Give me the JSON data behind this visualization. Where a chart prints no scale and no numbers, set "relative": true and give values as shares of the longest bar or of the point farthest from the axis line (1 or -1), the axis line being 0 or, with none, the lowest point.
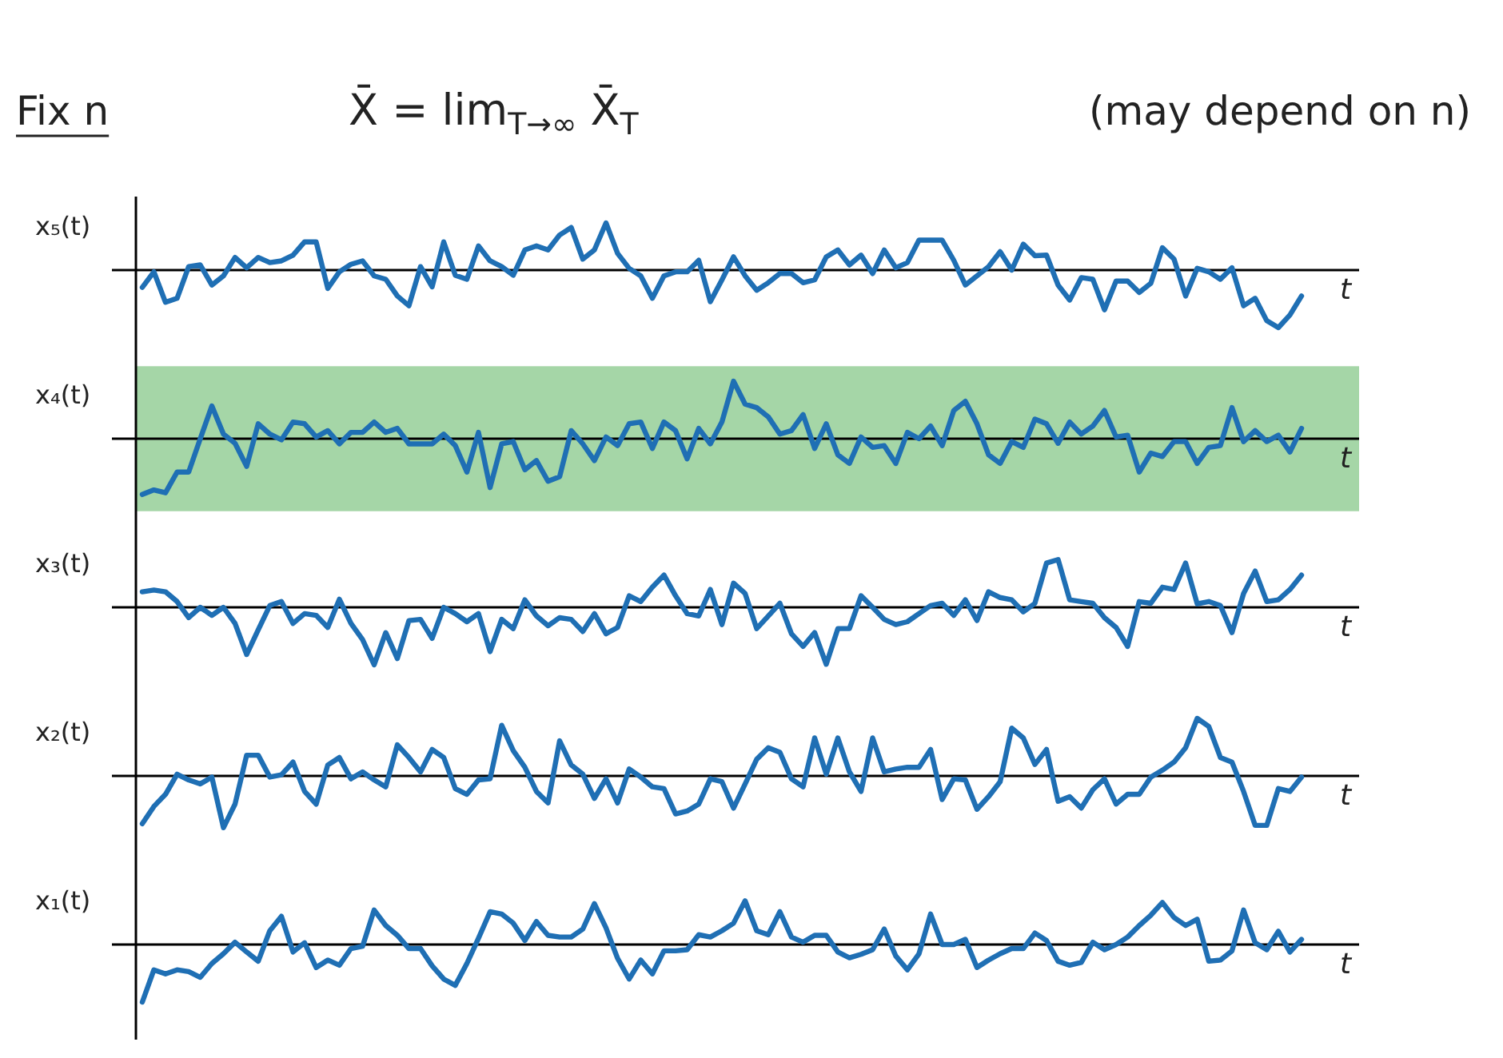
{
  "chart_data": [
    {
      "type": "line",
      "title": "X̄ = lim$_{T→∞}$ X̄$_{T}$",
      "annotations": [
        "Fix n",
        "(may depend on n)"
      ],
      "ylabel": "x₅(t)",
      "xlabel": "t",
      "relative": true,
      "color": "#1f6fb4",
      "categories": [
        null,
        null,
        null,
        null,
        null,
        null,
        null,
        null,
        null,
        null,
        null,
        null,
        null,
        null,
        null,
        null,
        null,
        null,
        null,
        null,
        null,
        null,
        null,
        null,
        null,
        null,
        null,
        null,
        null,
        null,
        null,
        null,
        null,
        null,
        null,
        null,
        null,
        null,
        null,
        null,
        null,
        null,
        null,
        null,
        null,
        null,
        null,
        null,
        null,
        null,
        null,
        null,
        null,
        null,
        null,
        null,
        null,
        null,
        null,
        null,
        null,
        null,
        null,
        null,
        null,
        null,
        null,
        null,
        null,
        null,
        null,
        null,
        null,
        null,
        null,
        null,
        null,
        null,
        null,
        null,
        null,
        null,
        null,
        null,
        null,
        null,
        null,
        null,
        null,
        null,
        null,
        null,
        null,
        null,
        null,
        null,
        null,
        null,
        null,
        null,
        null
      ],
      "values": [
        -0.3,
        -0.03,
        -0.56,
        -0.49,
        0.06,
        0.09,
        -0.26,
        -0.1,
        0.22,
        0.04,
        0.22,
        0.13,
        0.16,
        0.26,
        0.49,
        0.49,
        -0.32,
        -0.03,
        0.1,
        0.16,
        -0.1,
        -0.16,
        -0.45,
        -0.62,
        0.06,
        -0.29,
        0.49,
        -0.09,
        -0.16,
        0.42,
        0.16,
        0.06,
        -0.09,
        0.35,
        0.42,
        0.35,
        0.61,
        0.74,
        0.19,
        0.35,
        0.82,
        0.29,
        0.03,
        -0.1,
        -0.49,
        -0.1,
        -0.03,
        -0.03,
        0.17,
        -0.55,
        -0.17,
        0.23,
        -0.1,
        -0.35,
        -0.22,
        -0.06,
        -0.06,
        -0.22,
        -0.17,
        0.23,
        0.35,
        0.09,
        0.26,
        -0.06,
        0.35,
        0.04,
        0.13,
        0.52,
        0.52,
        0.52,
        0.17,
        -0.26,
        -0.1,
        0.06,
        0.32,
        0,
        0.45,
        0.25,
        0.26,
        -0.26,
        -0.52,
        -0.13,
        -0.16,
        -0.69,
        -0.19,
        -0.19,
        -0.39,
        -0.23,
        0.39,
        0.19,
        -0.45,
        0.03,
        -0.03,
        -0.16,
        0.04,
        -0.62,
        -0.49,
        -0.88,
        -1,
        -0.78,
        -0.45
      ]
    },
    {
      "type": "line",
      "ylabel": "x₄(t)",
      "xlabel": "t",
      "relative": true,
      "color": "#1f6fb4",
      "bands": [
        {
          "axis": "y",
          "from": -1.26,
          "to": 1.26,
          "color": "#a5d6a7"
        }
      ],
      "categories": [
        null,
        null,
        null,
        null,
        null,
        null,
        null,
        null,
        null,
        null,
        null,
        null,
        null,
        null,
        null,
        null,
        null,
        null,
        null,
        null,
        null,
        null,
        null,
        null,
        null,
        null,
        null,
        null,
        null,
        null,
        null,
        null,
        null,
        null,
        null,
        null,
        null,
        null,
        null,
        null,
        null,
        null,
        null,
        null,
        null,
        null,
        null,
        null,
        null,
        null,
        null,
        null,
        null,
        null,
        null,
        null,
        null,
        null,
        null,
        null,
        null,
        null,
        null,
        null,
        null,
        null,
        null,
        null,
        null,
        null,
        null,
        null,
        null,
        null,
        null,
        null,
        null,
        null,
        null,
        null,
        null,
        null,
        null,
        null,
        null,
        null,
        null,
        null,
        null,
        null,
        null,
        null,
        null,
        null,
        null,
        null,
        null,
        null,
        null,
        null,
        null
      ],
      "values": [
        -0.97,
        -0.89,
        -0.94,
        -0.58,
        -0.58,
        0,
        0.57,
        0.08,
        -0.08,
        -0.48,
        0.26,
        0.08,
        -0.02,
        0.29,
        0.26,
        0.03,
        0.14,
        -0.09,
        0.11,
        0.11,
        0.29,
        0.11,
        0.18,
        -0.09,
        -0.09,
        -0.09,
        0.08,
        -0.12,
        -0.58,
        0.11,
        -0.85,
        -0.09,
        -0.05,
        -0.54,
        -0.38,
        -0.74,
        -0.66,
        0.14,
        -0.09,
        -0.38,
        0.03,
        -0.12,
        0.26,
        0.29,
        -0.17,
        0.29,
        0.14,
        -0.35,
        0.18,
        -0.09,
        0.29,
        1,
        0.6,
        0.54,
        0.38,
        0.08,
        0.14,
        0.42,
        -0.17,
        0.26,
        -0.28,
        -0.43,
        0.03,
        -0.15,
        -0.12,
        -0.43,
        0.11,
        0,
        0.22,
        -0.12,
        0.49,
        0.65,
        0.26,
        -0.28,
        -0.43,
        -0.05,
        -0.15,
        0.34,
        0.26,
        -0.08,
        0.29,
        0.08,
        0.22,
        0.49,
        0.03,
        0.06,
        -0.58,
        -0.25,
        -0.31,
        -0.05,
        -0.05,
        -0.43,
        -0.15,
        -0.12,
        0.54,
        -0.05,
        0.14,
        -0.05,
        0.06,
        -0.23,
        0.18
      ]
    },
    {
      "type": "line",
      "ylabel": "x₃(t)",
      "xlabel": "t",
      "relative": true,
      "color": "#1f6fb4",
      "categories": [
        null,
        null,
        null,
        null,
        null,
        null,
        null,
        null,
        null,
        null,
        null,
        null,
        null,
        null,
        null,
        null,
        null,
        null,
        null,
        null,
        null,
        null,
        null,
        null,
        null,
        null,
        null,
        null,
        null,
        null,
        null,
        null,
        null,
        null,
        null,
        null,
        null,
        null,
        null,
        null,
        null,
        null,
        null,
        null,
        null,
        null,
        null,
        null,
        null,
        null,
        null,
        null,
        null,
        null,
        null,
        null,
        null,
        null,
        null,
        null,
        null,
        null,
        null,
        null,
        null,
        null,
        null,
        null,
        null,
        null,
        null,
        null,
        null,
        null,
        null,
        null,
        null,
        null,
        null,
        null,
        null,
        null,
        null,
        null,
        null,
        null,
        null,
        null,
        null,
        null,
        null,
        null,
        null,
        null,
        null,
        null,
        null,
        null,
        null,
        null,
        null
      ],
      "values": [
        0.27,
        0.3,
        0.27,
        0.1,
        -0.18,
        0,
        -0.14,
        0,
        -0.28,
        -0.82,
        -0.39,
        0.03,
        0.1,
        -0.28,
        -0.11,
        -0.14,
        -0.35,
        0.14,
        -0.28,
        -0.56,
        -1,
        -0.44,
        -0.89,
        -0.23,
        -0.21,
        -0.54,
        0,
        -0.11,
        -0.25,
        -0.11,
        -0.77,
        -0.21,
        -0.37,
        0.13,
        -0.15,
        -0.32,
        -0.18,
        -0.21,
        -0.42,
        -0.11,
        -0.46,
        -0.35,
        0.2,
        0.1,
        0.35,
        0.56,
        0.2,
        -0.11,
        -0.15,
        0.31,
        -0.3,
        0.42,
        0.24,
        -0.37,
        -0.15,
        0.07,
        -0.46,
        -0.68,
        -0.44,
        -0.99,
        -0.37,
        -0.37,
        0.2,
        0,
        -0.21,
        -0.3,
        -0.25,
        -0.11,
        0.03,
        0.07,
        -0.14,
        0.13,
        -0.23,
        0.27,
        0.17,
        0.13,
        -0.08,
        0.07,
        0.77,
        0.83,
        0.13,
        0.1,
        0.07,
        -0.18,
        -0.35,
        -0.68,
        0.1,
        0.07,
        0.35,
        0.31,
        0.77,
        0.06,
        0.1,
        0.03,
        -0.44,
        0.24,
        0.63,
        0.1,
        0.13,
        0.31,
        0.56
      ]
    },
    {
      "type": "line",
      "ylabel": "x₂(t)",
      "xlabel": "t",
      "relative": true,
      "color": "#1f6fb4",
      "categories": [
        null,
        null,
        null,
        null,
        null,
        null,
        null,
        null,
        null,
        null,
        null,
        null,
        null,
        null,
        null,
        null,
        null,
        null,
        null,
        null,
        null,
        null,
        null,
        null,
        null,
        null,
        null,
        null,
        null,
        null,
        null,
        null,
        null,
        null,
        null,
        null,
        null,
        null,
        null,
        null,
        null,
        null,
        null,
        null,
        null,
        null,
        null,
        null,
        null,
        null,
        null,
        null,
        null,
        null,
        null,
        null,
        null,
        null,
        null,
        null,
        null,
        null,
        null,
        null,
        null,
        null,
        null,
        null,
        null,
        null,
        null,
        null,
        null,
        null,
        null,
        null,
        null,
        null,
        null,
        null,
        null,
        null,
        null,
        null,
        null,
        null,
        null,
        null,
        null,
        null,
        null,
        null,
        null,
        null,
        null,
        null,
        null,
        null,
        null,
        null,
        null
      ],
      "values": [
        -0.83,
        -0.53,
        -0.32,
        0.03,
        -0.07,
        -0.14,
        -0.02,
        -0.9,
        -0.49,
        0.36,
        0.36,
        -0.02,
        0.02,
        0.24,
        -0.27,
        -0.49,
        0.19,
        0.32,
        -0.05,
        0.07,
        -0.07,
        -0.19,
        0.54,
        0.32,
        0.07,
        0.46,
        0.32,
        -0.22,
        -0.32,
        -0.07,
        -0.05,
        0.88,
        0.44,
        0.15,
        -0.27,
        -0.47,
        0.61,
        0.19,
        0.03,
        -0.39,
        -0.05,
        -0.47,
        0.12,
        -0.02,
        -0.19,
        -0.22,
        -0.66,
        -0.61,
        -0.49,
        -0.05,
        -0.1,
        -0.56,
        -0.14,
        0.29,
        0.49,
        0.41,
        -0.05,
        -0.19,
        0.66,
        0.03,
        0.66,
        0.07,
        -0.27,
        0.66,
        0.07,
        0.12,
        0.15,
        0.15,
        0.46,
        -0.41,
        -0.05,
        -0.07,
        -0.58,
        -0.36,
        -0.1,
        0.83,
        0.66,
        0.2,
        0.46,
        -0.44,
        -0.36,
        -0.56,
        -0.24,
        -0.05,
        -0.49,
        -0.32,
        -0.32,
        -0.02,
        0.1,
        0.24,
        0.49,
        1,
        0.86,
        0.32,
        0.24,
        -0.27,
        -0.86,
        -0.86,
        -0.22,
        -0.27,
        -0.02
      ]
    },
    {
      "type": "line",
      "ylabel": "x₁(t)",
      "xlabel": "t",
      "relative": true,
      "color": "#1f6fb4",
      "categories": [
        null,
        null,
        null,
        null,
        null,
        null,
        null,
        null,
        null,
        null,
        null,
        null,
        null,
        null,
        null,
        null,
        null,
        null,
        null,
        null,
        null,
        null,
        null,
        null,
        null,
        null,
        null,
        null,
        null,
        null,
        null,
        null,
        null,
        null,
        null,
        null,
        null,
        null,
        null,
        null,
        null,
        null,
        null,
        null,
        null,
        null,
        null,
        null,
        null,
        null,
        null,
        null,
        null,
        null,
        null,
        null,
        null,
        null,
        null,
        null,
        null,
        null,
        null,
        null,
        null,
        null,
        null,
        null,
        null,
        null,
        null,
        null,
        null,
        null,
        null,
        null,
        null,
        null,
        null,
        null,
        null,
        null,
        null,
        null,
        null,
        null,
        null,
        null,
        null,
        null,
        null,
        null,
        null,
        null,
        null,
        null,
        null,
        null,
        null,
        null,
        null
      ],
      "values": [
        -1,
        -0.44,
        -0.51,
        -0.44,
        -0.47,
        -0.57,
        -0.33,
        -0.16,
        0.04,
        -0.13,
        -0.29,
        0.24,
        0.49,
        -0.13,
        0.03,
        -0.4,
        -0.27,
        -0.36,
        -0.07,
        -0.03,
        0.6,
        0.33,
        0.16,
        -0.07,
        -0.07,
        -0.37,
        -0.6,
        -0.71,
        -0.33,
        0.11,
        0.57,
        0.53,
        0.37,
        0.07,
        0.4,
        0.16,
        0.13,
        0.13,
        0.27,
        0.71,
        0.29,
        -0.24,
        -0.6,
        -0.27,
        -0.51,
        -0.11,
        -0.11,
        -0.09,
        0.17,
        0.13,
        0.24,
        0.37,
        0.76,
        0.24,
        0.17,
        0.57,
        0.13,
        0.04,
        0.16,
        0.16,
        -0.13,
        -0.23,
        -0.17,
        -0.09,
        0.27,
        -0.2,
        -0.44,
        -0.16,
        0.53,
        0,
        0,
        0.09,
        -0.4,
        -0.27,
        -0.16,
        -0.07,
        -0.07,
        0.2,
        0.07,
        -0.29,
        -0.36,
        -0.31,
        0.04,
        -0.09,
        0,
        0.13,
        0.33,
        0.51,
        0.73,
        0.47,
        0.33,
        0.44,
        -0.29,
        -0.27,
        -0.11,
        0.6,
        0.03,
        -0.09,
        0.23,
        -0.13,
        0.09
      ]
    }
  ]
}
